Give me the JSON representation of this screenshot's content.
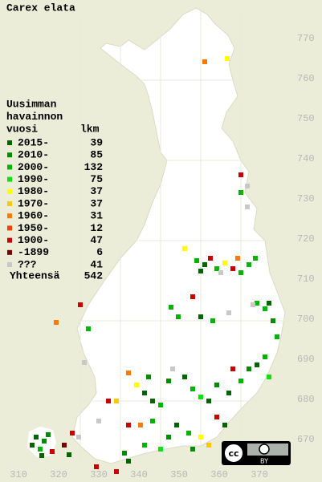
{
  "title": "Carex elata",
  "legend": {
    "heading": [
      "Uusimman",
      "havainnon",
      "vuosi"
    ],
    "count_heading": "lkm",
    "rows": [
      {
        "label": "2015-",
        "count": 39,
        "color": "#006400"
      },
      {
        "label": "2010-",
        "count": 85,
        "color": "#008c00"
      },
      {
        "label": "2000-",
        "count": 132,
        "color": "#00b400"
      },
      {
        "label": "1990-",
        "count": 75,
        "color": "#10e010"
      },
      {
        "label": "1980-",
        "count": 37,
        "color": "#ffff00"
      },
      {
        "label": "1970-",
        "count": 37,
        "color": "#ffc800"
      },
      {
        "label": "1960-",
        "count": 31,
        "color": "#ff7800"
      },
      {
        "label": "1950-",
        "count": 12,
        "color": "#ff3c00"
      },
      {
        "label": "1900-",
        "count": 47,
        "color": "#c80000"
      },
      {
        "label": "-1899",
        "count": 6,
        "color": "#780000"
      },
      {
        "label": "???",
        "count": 41,
        "color": "#c8c8c8"
      }
    ],
    "total_label": "Yhteensä",
    "total": 542
  },
  "yticks": [
    770,
    760,
    750,
    740,
    730,
    720,
    710,
    700,
    690,
    680,
    670
  ],
  "xticks": [
    310,
    320,
    330,
    340,
    350,
    360,
    370
  ],
  "badge": {
    "logo": "cc",
    "label": "BY"
  },
  "observations": [
    [
      356.4,
      764.2,
      "1960-"
    ],
    [
      362,
      765,
      "1980-"
    ],
    [
      365.4,
      736,
      "1900-"
    ],
    [
      365.4,
      731.6,
      "2000-"
    ],
    [
      367,
      733.2,
      "???"
    ],
    [
      367,
      728,
      "???"
    ],
    [
      351.4,
      717.6,
      "1980-"
    ],
    [
      354.4,
      714.6,
      "2000-"
    ],
    [
      356.4,
      713.6,
      "2015-"
    ],
    [
      357.8,
      715.2,
      "1900-"
    ],
    [
      359.4,
      712.6,
      "2000-"
    ],
    [
      361.4,
      714,
      "1980-"
    ],
    [
      363.4,
      712.6,
      "1900-"
    ],
    [
      365.4,
      711.6,
      "2000-"
    ],
    [
      367.4,
      713.6,
      "2000-"
    ],
    [
      369,
      715.2,
      "2000-"
    ],
    [
      364.6,
      715.2,
      "1960-"
    ],
    [
      360.4,
      711.6,
      "???"
    ],
    [
      355.4,
      712,
      "2015-"
    ],
    [
      369.4,
      704,
      "2000-"
    ],
    [
      371.4,
      702.6,
      "2000-"
    ],
    [
      372.4,
      704,
      "2015-"
    ],
    [
      348,
      703,
      "2000-"
    ],
    [
      349.8,
      700.6,
      "2000-"
    ],
    [
      353.4,
      705.6,
      "1900-"
    ],
    [
      355.4,
      700.6,
      "2015-"
    ],
    [
      358.4,
      699.6,
      "2000-"
    ],
    [
      362.4,
      701.6,
      "???"
    ],
    [
      325.4,
      703.6,
      "1900-"
    ],
    [
      319.4,
      699.2,
      "1960-"
    ],
    [
      327.4,
      697.6,
      "2000-"
    ],
    [
      326.4,
      689.2,
      "???"
    ],
    [
      368.4,
      703.6,
      "???"
    ],
    [
      373.4,
      699.6,
      "2010-"
    ],
    [
      374.4,
      695.6,
      "2000-"
    ],
    [
      337.4,
      686.6,
      "1960-"
    ],
    [
      339.4,
      683.6,
      "1980-"
    ],
    [
      341.4,
      681.6,
      "2015-"
    ],
    [
      343.4,
      679.6,
      "2015-"
    ],
    [
      345.4,
      678.6,
      "2000-"
    ],
    [
      342.4,
      685.6,
      "2010-"
    ],
    [
      347.4,
      684.6,
      "2010-"
    ],
    [
      351.4,
      685.6,
      "2015-"
    ],
    [
      353.4,
      682.6,
      "2000-"
    ],
    [
      355.4,
      680.6,
      "1990-"
    ],
    [
      357.4,
      679.6,
      "2015-"
    ],
    [
      359.4,
      683.6,
      "2010-"
    ],
    [
      362.4,
      681.6,
      "2015-"
    ],
    [
      365.4,
      684.6,
      "2000-"
    ],
    [
      367.4,
      687.6,
      "2010-"
    ],
    [
      369.4,
      688.6,
      "2015-"
    ],
    [
      371.4,
      690.6,
      "2000-"
    ],
    [
      372.4,
      685.6,
      "1990-"
    ],
    [
      363.4,
      687.6,
      "1900-"
    ],
    [
      348.4,
      687.6,
      "???"
    ],
    [
      332.4,
      679.6,
      "1900-"
    ],
    [
      334.4,
      679.6,
      "1970-"
    ],
    [
      337.4,
      673.6,
      "1900-"
    ],
    [
      340.4,
      673.6,
      "1960-"
    ],
    [
      343.4,
      674.6,
      "2000-"
    ],
    [
      349.4,
      673.6,
      "2015-"
    ],
    [
      352.4,
      671.6,
      "2000-"
    ],
    [
      355.4,
      670.6,
      "1980-"
    ],
    [
      357.4,
      668.6,
      "1970-"
    ],
    [
      353.4,
      667.6,
      "2010-"
    ],
    [
      359.4,
      675.6,
      "1900-"
    ],
    [
      361.4,
      673.6,
      "2015-"
    ],
    [
      347.4,
      670.6,
      "2010-"
    ],
    [
      345.4,
      667.6,
      "1990-"
    ],
    [
      341.4,
      668.6,
      "2000-"
    ],
    [
      336.4,
      666.6,
      "2010-"
    ],
    [
      337.4,
      664.6,
      "2015-"
    ],
    [
      334.4,
      662,
      "1900-"
    ],
    [
      329.4,
      663.2,
      "1900-"
    ],
    [
      323.4,
      671.6,
      "1900-"
    ],
    [
      321.4,
      668.6,
      "-1899"
    ],
    [
      322.6,
      666.2,
      "2015-"
    ],
    [
      325,
      670.6,
      "???"
    ],
    [
      330,
      674.6,
      "???"
    ],
    [
      314.4,
      670.6,
      "2015-"
    ],
    [
      316.4,
      669.6,
      "2010-"
    ],
    [
      315.4,
      667.6,
      "2000-"
    ],
    [
      313.4,
      668.6,
      "2015-"
    ],
    [
      317.4,
      671.2,
      "2010-"
    ],
    [
      318.4,
      667,
      "1900-"
    ],
    [
      315.8,
      666,
      "2015-"
    ]
  ]
}
